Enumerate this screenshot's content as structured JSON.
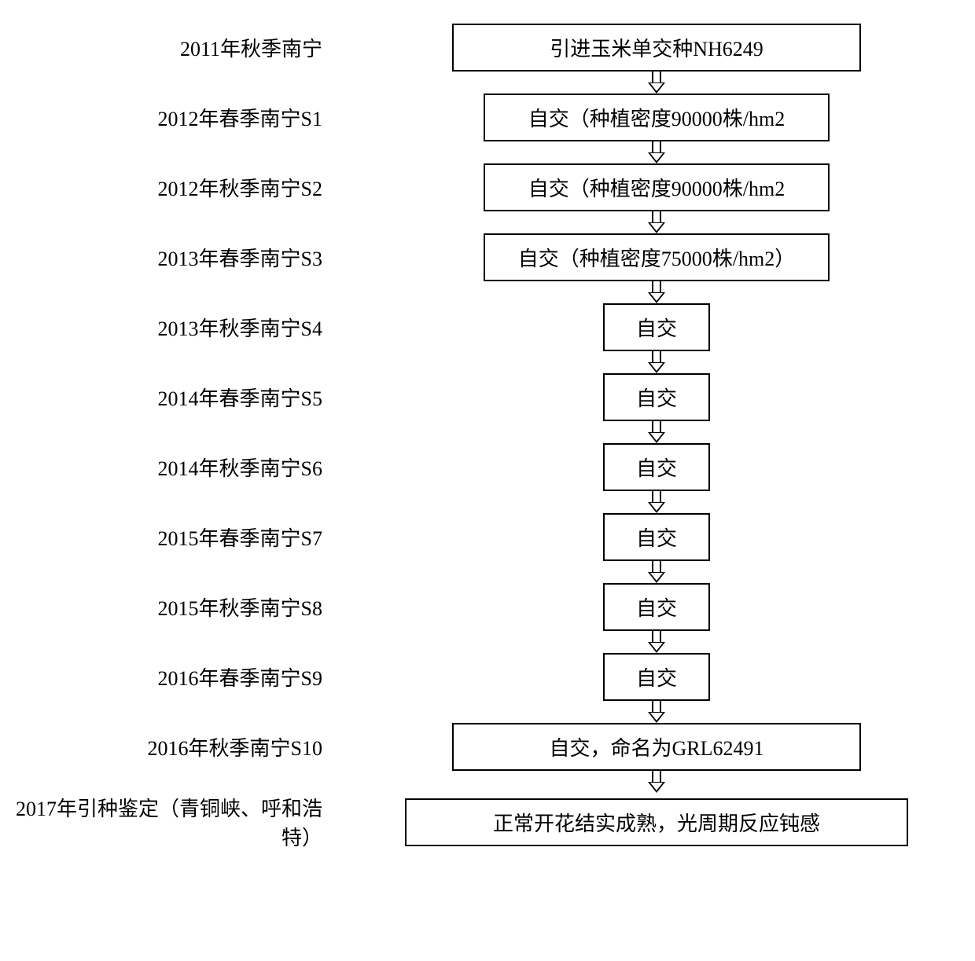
{
  "type": "flowchart",
  "background_color": "#ffffff",
  "border_color": "#000000",
  "text_color": "#000000",
  "font_size": 26,
  "font_family": "SimSun",
  "steps": [
    {
      "label": "2011年秋季南宁",
      "box": "引进玉米单交种NH6249",
      "box_class": "box-wide"
    },
    {
      "label": "2012年春季南宁S1",
      "box": "自交（种植密度90000株/hm2",
      "box_class": "box-medium"
    },
    {
      "label": "2012年秋季南宁S2",
      "box": "自交（种植密度90000株/hm2",
      "box_class": "box-medium"
    },
    {
      "label": "2013年春季南宁S3",
      "box": "自交（种植密度75000株/hm2）",
      "box_class": "box-medium"
    },
    {
      "label": "2013年秋季南宁S4",
      "box": "自交",
      "box_class": "box-narrow"
    },
    {
      "label": "2014年春季南宁S5",
      "box": "自交",
      "box_class": "box-narrow"
    },
    {
      "label": "2014年秋季南宁S6",
      "box": "自交",
      "box_class": "box-narrow"
    },
    {
      "label": "2015年春季南宁S7",
      "box": "自交",
      "box_class": "box-narrow"
    },
    {
      "label": "2015年秋季南宁S8",
      "box": "自交",
      "box_class": "box-narrow"
    },
    {
      "label": "2016年春季南宁S9",
      "box": "自交",
      "box_class": "box-narrow"
    },
    {
      "label": "2016年秋季南宁S10",
      "box": "自交，命名为GRL62491",
      "box_class": "box-wide"
    },
    {
      "label": "2017年引种鉴定（青铜峡、呼和浩特）",
      "box": "正常开花结实成熟，光周期反应钝感",
      "box_class": "box-final"
    }
  ]
}
